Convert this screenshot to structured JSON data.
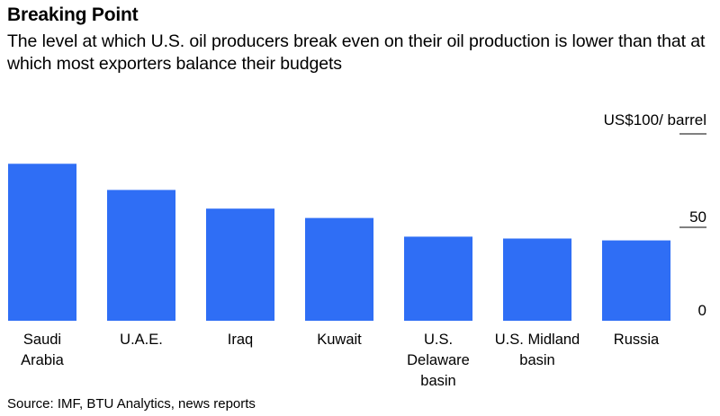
{
  "title": "Breaking Point",
  "subtitle": "The level at which U.S. oil producers break even on their oil production is lower than that at which most exporters balance their budgets",
  "source": "Source: IMF, BTU Analytics, news reports",
  "chart_data": {
    "type": "bar",
    "title": "Breaking Point",
    "subtitle": "The level at which U.S. oil producers break even on their oil production is lower than that at which most exporters balance their budgets",
    "unit_label": "US$100/ barrel",
    "categories": [
      "Saudi Arabia",
      "U.A.E.",
      "Iraq",
      "Kuwait",
      "U.S. Delaware basin",
      "U.S. Midland basin",
      "Russia"
    ],
    "category_lines": [
      [
        "Saudi",
        "Arabia"
      ],
      [
        "U.A.E."
      ],
      [
        "Iraq"
      ],
      [
        "Kuwait"
      ],
      [
        "U.S.",
        "Delaware",
        "basin"
      ],
      [
        "U.S. Midland",
        "basin"
      ],
      [
        "Russia"
      ]
    ],
    "values": [
      84,
      70,
      60,
      55,
      45,
      44,
      43
    ],
    "ylim": [
      0,
      100
    ],
    "yticks": [
      0,
      50,
      100
    ],
    "ytick_labels": [
      "0",
      "50",
      ""
    ],
    "grid": false,
    "bar_color": "#2f6ef5"
  }
}
